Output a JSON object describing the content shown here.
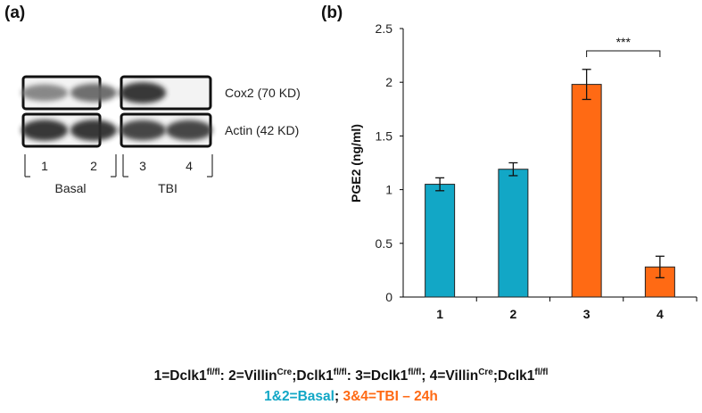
{
  "panels": {
    "a": "(a)",
    "b": "(b)"
  },
  "blot": {
    "bands": [
      {
        "name": "Cox2 (70 KD)",
        "intensity": [
          0.35,
          0.55,
          0.95,
          0.0
        ]
      },
      {
        "name": "Actin (42 KD)",
        "intensity": [
          0.95,
          0.95,
          0.85,
          0.85
        ]
      }
    ],
    "lanes": [
      "1",
      "2",
      "3",
      "4"
    ],
    "groups": [
      "Basal",
      "TBI"
    ]
  },
  "chart_data": {
    "type": "bar",
    "categories": [
      "1",
      "2",
      "3",
      "4"
    ],
    "values": [
      1.05,
      1.19,
      1.98,
      0.28
    ],
    "errors": [
      0.06,
      0.06,
      0.14,
      0.1
    ],
    "colors": [
      "#12a7c6",
      "#12a7c6",
      "#ff6a14",
      "#ff6a14"
    ],
    "xlabel": "",
    "ylabel": "PGE2 (ng/ml)",
    "ylim": [
      0,
      2.5
    ],
    "yticks": [
      "0",
      "0.5",
      "1",
      "1.5",
      "2",
      "2.5"
    ],
    "grid": false,
    "significance": {
      "from": "3",
      "to": "4",
      "label": "***"
    }
  },
  "legend": {
    "line1": [
      {
        "t": "1=Dclk1"
      },
      {
        "t": "fl/fl",
        "sup": true
      },
      {
        "t": ": 2=Villin"
      },
      {
        "t": "Cre",
        "sup": true
      },
      {
        "t": ";Dclk1"
      },
      {
        "t": "fl/fl",
        "sup": true
      },
      {
        "t": ": 3=Dclk1"
      },
      {
        "t": "fl/fl",
        "sup": true
      },
      {
        "t": "; 4=Villin"
      },
      {
        "t": "Cre",
        "sup": true
      },
      {
        "t": ";Dclk1"
      },
      {
        "t": "fl/fl",
        "sup": true
      }
    ],
    "line2": [
      {
        "t": "1&2=Basal",
        "color": "#12a7c6"
      },
      {
        "t": "; ",
        "color": "#111111"
      },
      {
        "t": "3&4=TBI – 24h",
        "color": "#ff6a14"
      }
    ]
  }
}
